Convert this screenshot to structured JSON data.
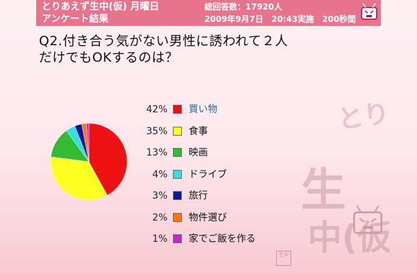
{
  "header": {
    "title_line1": "とりあえず生中(仮) 月曜日",
    "title_line2": "アンケート結果",
    "total_answers": "総回答数：17920人",
    "survey_info": "2009年9月7日　20:43実施　200秒間"
  },
  "question": {
    "line1": "Q2.付き合う気がない男性に誘われて２人",
    "line2": "だけでもOKするのは？"
  },
  "watermark": {
    "text": "とりあえず生中(仮)"
  },
  "stamp": {
    "text": "生中"
  },
  "chart_data": {
    "type": "pie",
    "title": "",
    "start_angle_deg": 0,
    "direction": "clockwise",
    "legend_position": "right",
    "slices": [
      {
        "label": "買い物",
        "percent_label": "42%",
        "value": 42,
        "color": "#ee1111"
      },
      {
        "label": "食事",
        "percent_label": "35%",
        "value": 35,
        "color": "#ffff22"
      },
      {
        "label": "映画",
        "percent_label": "13%",
        "value": 13,
        "color": "#33bb33"
      },
      {
        "label": "ドライブ",
        "percent_label": "4%",
        "value": 4,
        "color": "#33e0e0"
      },
      {
        "label": "旅行",
        "percent_label": "3%",
        "value": 3,
        "color": "#0b1a99"
      },
      {
        "label": "物件選び",
        "percent_label": "2%",
        "value": 2,
        "color": "#ff7711"
      },
      {
        "label": "家でご飯を作る",
        "percent_label": "1%",
        "value": 1,
        "color": "#cc22cc"
      }
    ]
  }
}
